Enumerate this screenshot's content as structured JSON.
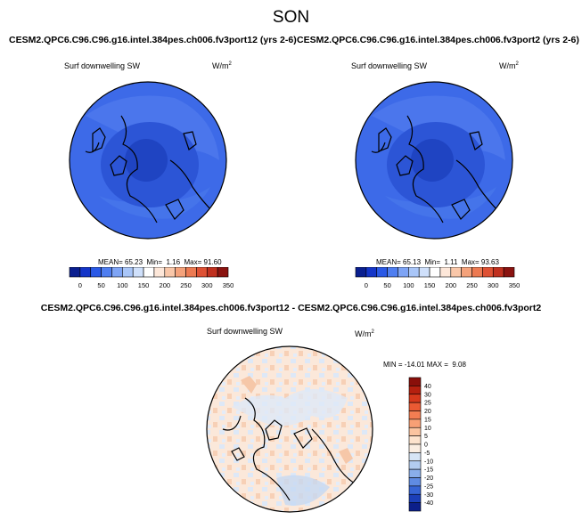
{
  "page": {
    "title": "SON"
  },
  "panels": [
    {
      "title": "CESM2.QPC6.C96.C96.g16.intel.384pes.ch006.fv3port12 (yrs 2-6)",
      "variable": "Surf downwelling SW",
      "units_base": "W/m",
      "units_exp": "2",
      "stats": "MEAN= 65.23  Min=  1.16  Max= 91.60"
    },
    {
      "title": "CESM2.QPC6.C96.C96.g16.intel.384pes.ch006.fv3port2 (yrs 2-6)",
      "variable": "Surf downwelling SW",
      "units_base": "W/m",
      "units_exp": "2",
      "stats": "MEAN= 65.13  Min=  1.11  Max= 93.63"
    }
  ],
  "colorbar_abs": {
    "labels": [
      "0",
      "50",
      "100",
      "150",
      "200",
      "250",
      "300",
      "350"
    ],
    "colors": [
      "#0a1f8f",
      "#1435c8",
      "#2a59e6",
      "#4f7ef0",
      "#7ea4f5",
      "#a9c6f8",
      "#cfe0fb",
      "#ffffff",
      "#fde7d9",
      "#f9c7a9",
      "#f4a27b",
      "#ec7a52",
      "#de5134",
      "#c0301f",
      "#8a1310"
    ]
  },
  "diff_panel": {
    "title": "CESM2.QPC6.C96.C96.g16.intel.384pes.ch006.fv3port12 - CESM2.QPC6.C96.C96.g16.intel.384pes.ch006.fv3port2",
    "variable": "Surf downwelling SW",
    "units_base": "W/m",
    "units_exp": "2",
    "stats": "MIN = -14.01 MAX =  9.08"
  },
  "colorbar_diff": {
    "labels": [
      "40",
      "30",
      "25",
      "20",
      "15",
      "10",
      "5",
      "0",
      "-5",
      "-10",
      "-15",
      "-20",
      "-25",
      "-30",
      "-40"
    ],
    "colors": [
      "#8a0f0a",
      "#b5200f",
      "#d6391c",
      "#ea5a33",
      "#f37d52",
      "#f8a075",
      "#fbc4a0",
      "#fde3cd",
      "#fbeee2",
      "#d7e5f6",
      "#b3cdf0",
      "#8aaeea",
      "#5f8be2",
      "#3664d4",
      "#1b3fb8",
      "#0c1f8a"
    ]
  }
}
